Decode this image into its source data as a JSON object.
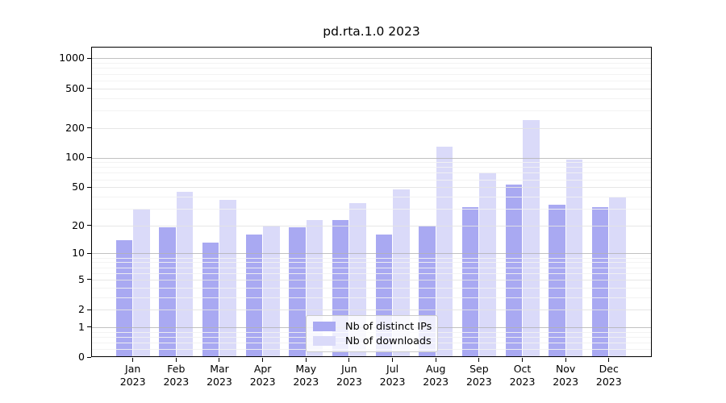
{
  "chart_data": {
    "type": "bar",
    "title": "pd.rta.1.0 2023",
    "categories": [
      "Jan",
      "Feb",
      "Mar",
      "Apr",
      "May",
      "Jun",
      "Jul",
      "Aug",
      "Sep",
      "Oct",
      "Nov",
      "Dec"
    ],
    "category_year": "2023",
    "series": [
      {
        "name": "Nb of distinct IPs",
        "color": "#a9a9f2",
        "values": [
          14,
          19,
          13,
          16,
          19,
          23,
          16,
          20,
          31,
          53,
          33,
          31
        ]
      },
      {
        "name": "Nb of downloads",
        "color": "#dadaf9",
        "values": [
          30,
          45,
          37,
          20,
          23,
          34,
          47,
          130,
          70,
          240,
          96,
          39
        ]
      }
    ],
    "yscale": "log1p",
    "yticks": [
      0,
      1,
      2,
      5,
      10,
      20,
      50,
      100,
      200,
      500,
      1000
    ],
    "ylim": [
      0,
      1300
    ],
    "xlabel": "",
    "ylabel": "",
    "grid": true,
    "legend_position": "lower center"
  }
}
